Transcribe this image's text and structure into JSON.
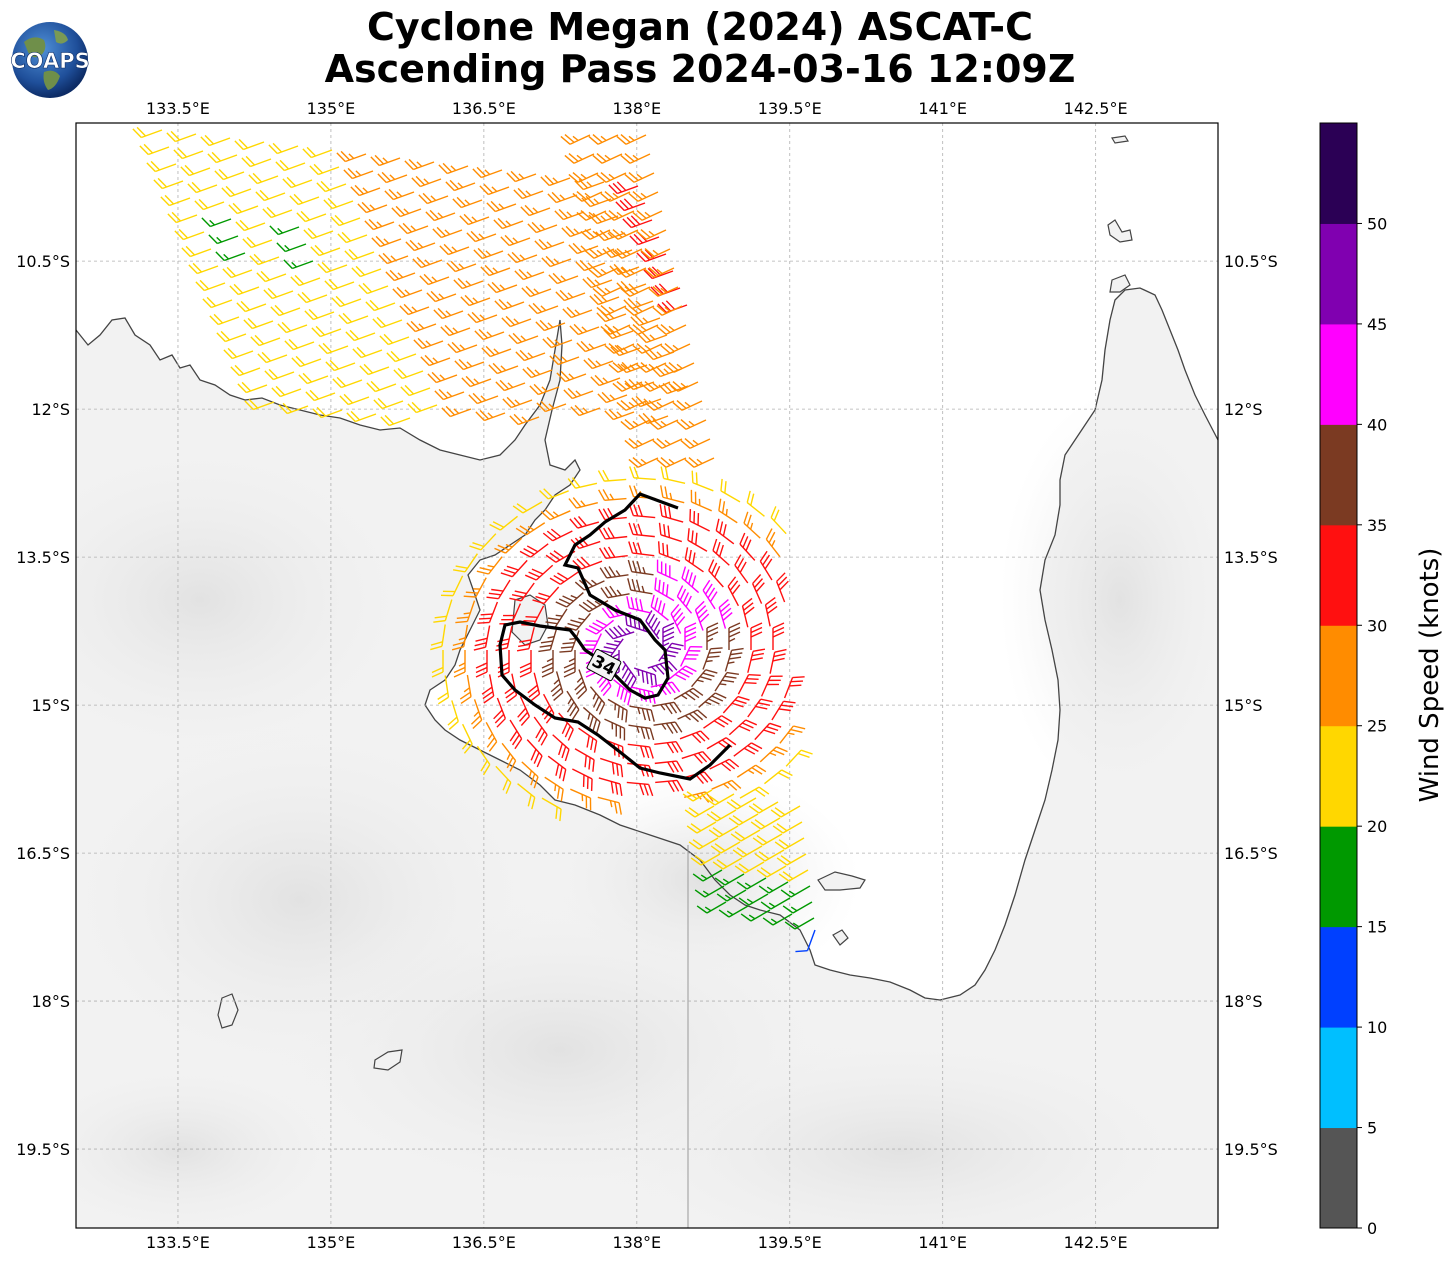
{
  "title": {
    "line1": "Cyclone Megan (2024) ASCAT-C",
    "line2": "Ascending Pass 2024-03-16 12:09Z"
  },
  "logo": {
    "text": "COAPS",
    "icon": "globe-icon"
  },
  "map": {
    "lon_range": [
      132.5,
      143.7
    ],
    "lat_range": [
      -20.3,
      -9.1
    ],
    "lon_ticks": [
      "133.5°E",
      "135°E",
      "136.5°E",
      "138°E",
      "139.5°E",
      "141°E",
      "142.5°E"
    ],
    "lon_tick_values": [
      133.5,
      135,
      136.5,
      138,
      139.5,
      141,
      142.5
    ],
    "lat_ticks": [
      "10.5°S",
      "12°S",
      "13.5°S",
      "15°S",
      "16.5°S",
      "18°S",
      "19.5°S"
    ],
    "lat_tick_values": [
      -10.5,
      -12,
      -13.5,
      -15,
      -16.5,
      -18,
      -19.5
    ],
    "gridlines": true,
    "contour_label": "34",
    "coastline_color": "#444444",
    "land_color": "#f2f2f2"
  },
  "colorbar": {
    "title": "Wind Speed (knots)",
    "ticks": [
      "0",
      "5",
      "10",
      "15",
      "20",
      "25",
      "30",
      "35",
      "40",
      "45",
      "50"
    ],
    "colors": [
      "#555555",
      "#00bfff",
      "#0040ff",
      "#009900",
      "#ffd700",
      "#ff8c00",
      "#ff1010",
      "#7b3a22",
      "#ff00ff",
      "#8000b0",
      "#2b0055"
    ]
  }
}
